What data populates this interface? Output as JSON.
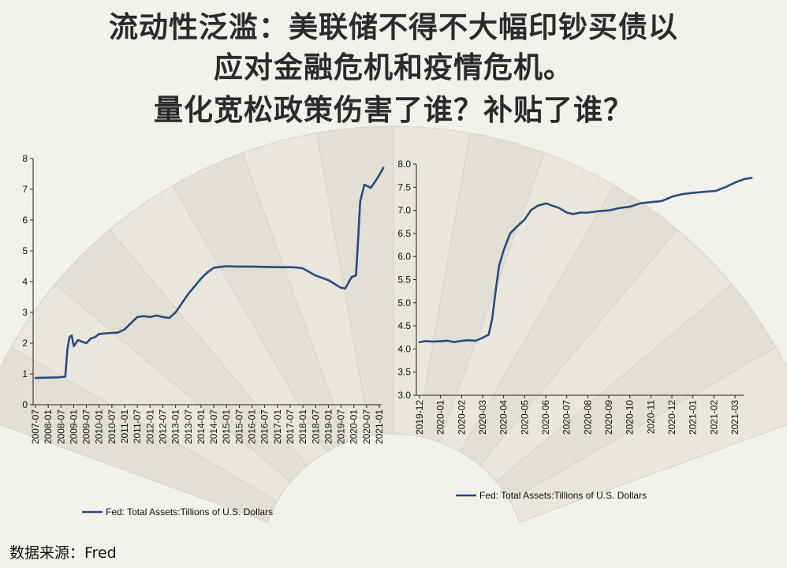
{
  "title_lines": [
    "流动性泛滥：美联储不得不大幅印钞买债以",
    "应对金融危机和疫情危机。",
    "量化宽松政策伤害了谁？补贴了谁？"
  ],
  "source": "数据来源：Fred",
  "colors": {
    "series": "#2a4b7c",
    "axis": "#222222",
    "background": "#f3f1ec"
  },
  "chart_data": [
    {
      "type": "line",
      "title": "",
      "xlabel": "",
      "ylabel": "",
      "x_tick_labels": [
        "2007-07",
        "2008-01",
        "2008-07",
        "2009-01",
        "2009-07",
        "2010-01",
        "2010-07",
        "2011-01",
        "2011-07",
        "2012-01",
        "2012-07",
        "2013-01",
        "2013-07",
        "2014-01",
        "2014-07",
        "2015-01",
        "2015-07",
        "2016-01",
        "2016-07",
        "2017-01",
        "2017-07",
        "2018-01",
        "2018-07",
        "2019-01",
        "2019-07",
        "2020-01",
        "2020-07",
        "2021-01"
      ],
      "y_ticks": [
        "0",
        "1",
        "2",
        "3",
        "4",
        "5",
        "6",
        "7",
        "8"
      ],
      "ylim": [
        0,
        8
      ],
      "grid": false,
      "legend_position": "bottom-center",
      "series": [
        {
          "name": "Fed: Total Assets:Tillions of U.S. Dollars",
          "x": [
            "2007-07",
            "2008-01",
            "2008-06",
            "2008-09",
            "2008-10",
            "2008-11",
            "2008-12",
            "2009-01",
            "2009-03",
            "2009-05",
            "2009-07",
            "2009-09",
            "2009-11",
            "2010-01",
            "2010-04",
            "2010-07",
            "2010-10",
            "2011-01",
            "2011-04",
            "2011-07",
            "2011-10",
            "2012-01",
            "2012-04",
            "2012-07",
            "2012-10",
            "2013-01",
            "2013-04",
            "2013-07",
            "2013-10",
            "2014-01",
            "2014-04",
            "2014-07",
            "2014-10",
            "2015-01",
            "2015-07",
            "2016-01",
            "2016-07",
            "2017-01",
            "2017-07",
            "2017-10",
            "2018-01",
            "2018-07",
            "2019-01",
            "2019-07",
            "2019-09",
            "2019-12",
            "2020-02",
            "2020-03",
            "2020-04",
            "2020-06",
            "2020-09",
            "2020-12",
            "2021-03"
          ],
          "y": [
            0.87,
            0.88,
            0.89,
            0.91,
            1.8,
            2.2,
            2.25,
            1.9,
            2.1,
            2.05,
            2.0,
            2.15,
            2.2,
            2.3,
            2.32,
            2.33,
            2.35,
            2.45,
            2.65,
            2.85,
            2.88,
            2.85,
            2.9,
            2.85,
            2.82,
            3.0,
            3.3,
            3.6,
            3.85,
            4.1,
            4.3,
            4.45,
            4.48,
            4.5,
            4.49,
            4.49,
            4.48,
            4.47,
            4.47,
            4.46,
            4.43,
            4.2,
            4.05,
            3.8,
            3.78,
            4.15,
            4.2,
            5.3,
            6.6,
            7.15,
            7.05,
            7.35,
            7.7
          ]
        }
      ]
    },
    {
      "type": "line",
      "title": "",
      "xlabel": "",
      "ylabel": "",
      "x_tick_labels": [
        "2019-12",
        "2020-01",
        "2020-02",
        "2020-03",
        "2020-04",
        "2020-05",
        "2020-06",
        "2020-07",
        "2020-08",
        "2020-09",
        "2020-10",
        "2020-11",
        "2020-12",
        "2021-01",
        "2021-02",
        "2021-03"
      ],
      "y_ticks": [
        "3.0",
        "3.5",
        "4.0",
        "4.5",
        "5.0",
        "5.5",
        "6.0",
        "6.5",
        "7.0",
        "7.5",
        "8.0"
      ],
      "ylim": [
        3.0,
        8.0
      ],
      "grid": false,
      "legend_position": "bottom-center",
      "series": [
        {
          "name": "Fed: Total Assets:Tillions of U.S. Dollars",
          "x": [
            "2019-12-01",
            "2019-12-10",
            "2019-12-20",
            "2020-01-01",
            "2020-01-10",
            "2020-01-20",
            "2020-02-01",
            "2020-02-10",
            "2020-02-20",
            "2020-03-01",
            "2020-03-10",
            "2020-03-15",
            "2020-03-20",
            "2020-03-25",
            "2020-04-01",
            "2020-04-10",
            "2020-04-20",
            "2020-05-01",
            "2020-05-10",
            "2020-05-20",
            "2020-06-01",
            "2020-06-10",
            "2020-06-20",
            "2020-07-01",
            "2020-07-10",
            "2020-07-20",
            "2020-08-01",
            "2020-08-15",
            "2020-09-01",
            "2020-09-15",
            "2020-10-01",
            "2020-10-15",
            "2020-11-01",
            "2020-11-15",
            "2020-12-01",
            "2020-12-15",
            "2021-01-01",
            "2021-01-15",
            "2021-02-01",
            "2021-02-15",
            "2021-03-01",
            "2021-03-15",
            "2021-03-25"
          ],
          "y": [
            4.15,
            4.17,
            4.16,
            4.17,
            4.18,
            4.15,
            4.18,
            4.19,
            4.18,
            4.24,
            4.31,
            4.65,
            5.25,
            5.8,
            6.15,
            6.5,
            6.65,
            6.8,
            7.0,
            7.1,
            7.15,
            7.1,
            7.05,
            6.95,
            6.92,
            6.95,
            6.95,
            6.98,
            7.0,
            7.05,
            7.08,
            7.15,
            7.18,
            7.2,
            7.3,
            7.35,
            7.38,
            7.4,
            7.42,
            7.5,
            7.6,
            7.68,
            7.7
          ]
        }
      ]
    }
  ]
}
